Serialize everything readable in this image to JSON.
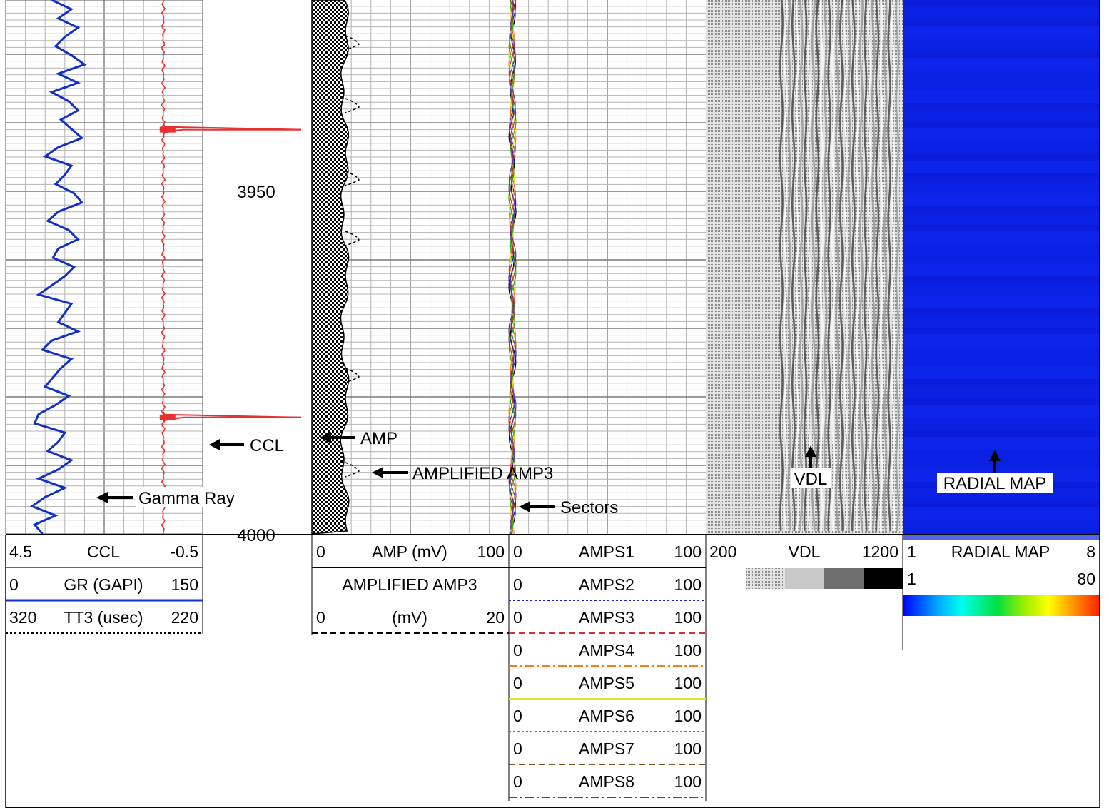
{
  "depth": {
    "labels": [
      "3950",
      "4000"
    ]
  },
  "callouts": {
    "ccl": "CCL",
    "gamma_ray": "Gamma Ray",
    "amp": "AMP",
    "amplified_amp3": "AMPLIFIED AMP3",
    "sectors": "Sectors",
    "vdl": "VDL",
    "radial_map": "RADIAL MAP"
  },
  "track1_header": [
    {
      "left": "4.5",
      "name": "CCL",
      "right": "-0.5",
      "line_color": "#e83030",
      "line_style": "solid"
    },
    {
      "left": "0",
      "name": "GR (GAPI)",
      "right": "150",
      "line_color": "#1030c8",
      "line_style": "solid"
    },
    {
      "left": "320",
      "name": "TT3 (usec)",
      "right": "220",
      "line_color": "#000000",
      "line_style": "dotted"
    }
  ],
  "track3_header": [
    {
      "left": "0",
      "name": "AMP (mV)",
      "right": "100",
      "line_color": "#000000",
      "line_style": "solid"
    },
    {
      "left": "",
      "name": "AMPLIFIED AMP3",
      "right": "",
      "line_color": "",
      "line_style": "none"
    },
    {
      "left": "0",
      "name": "(mV)",
      "right": "20",
      "line_color": "#000000",
      "line_style": "dashed"
    }
  ],
  "track4_header": [
    {
      "left": "0",
      "name": "AMPS1",
      "right": "100",
      "line_color": "#000000",
      "line_style": "solid"
    },
    {
      "left": "0",
      "name": "AMPS2",
      "right": "100",
      "line_color": "#2020c0",
      "line_style": "dotted"
    },
    {
      "left": "0",
      "name": "AMPS3",
      "right": "100",
      "line_color": "#d03030",
      "line_style": "dashed"
    },
    {
      "left": "0",
      "name": "AMPS4",
      "right": "100",
      "line_color": "#f08020",
      "line_style": "dashdot"
    },
    {
      "left": "0",
      "name": "AMPS5",
      "right": "100",
      "line_color": "#e8e020",
      "line_style": "solid"
    },
    {
      "left": "0",
      "name": "AMPS6",
      "right": "100",
      "line_color": "#20b020",
      "line_style": "dotted"
    },
    {
      "left": "0",
      "name": "AMPS7",
      "right": "100",
      "line_color": "#805020",
      "line_style": "dashed"
    },
    {
      "left": "0",
      "name": "AMPS8",
      "right": "100",
      "line_color": "#6030a0",
      "line_style": "dashdot"
    }
  ],
  "vdl_header": {
    "left": "200",
    "name": "VDL",
    "right": "1200"
  },
  "radial_header": {
    "left": "1",
    "name": "RADIAL MAP",
    "right": "8",
    "scale_left": "1",
    "scale_right": "80"
  },
  "colors": {
    "ccl": "#e83030",
    "gamma_ray": "#1030c8",
    "radial_fill": "#0b1fe0",
    "grid_minor": "#b4b4b4",
    "grid_major": "#7a7a7a"
  },
  "chart_data": {
    "type": "line",
    "depth_axis": {
      "units": "depth",
      "labels": [
        3950,
        4000
      ]
    },
    "series": [
      {
        "name": "CCL",
        "scale": [
          4.5,
          -0.5
        ],
        "baseline": 0.5,
        "spikes": [
          {
            "depth": 3941,
            "value": -3
          },
          {
            "depth": 3983,
            "value": -3
          }
        ]
      },
      {
        "name": "GR (GAPI)",
        "scale": [
          0,
          150
        ],
        "values": [
          35,
          50,
          40,
          55,
          45,
          38,
          50,
          60,
          40,
          55,
          35,
          48,
          55,
          42,
          50,
          58,
          40,
          30,
          50,
          45,
          38,
          52,
          58,
          40,
          32,
          48,
          55,
          40,
          36,
          52,
          45,
          35,
          25,
          50,
          45,
          40,
          55,
          35,
          28,
          50,
          42,
          36,
          30,
          48,
          38,
          25,
          22,
          45,
          40,
          32,
          50,
          40,
          25,
          45,
          30,
          20,
          38,
          22,
          28
        ]
      },
      {
        "name": "AMP (mV)",
        "scale": [
          0,
          100
        ],
        "values_range": [
          0,
          17
        ]
      },
      {
        "name": "AMPLIFIED AMP3 (mV)",
        "scale": [
          0,
          20
        ]
      },
      {
        "name": "AMPS1-AMPS8",
        "scale": [
          0,
          100
        ],
        "values_range": [
          0,
          2
        ]
      },
      {
        "name": "VDL",
        "scale": [
          200,
          1200
        ]
      },
      {
        "name": "RADIAL MAP",
        "scale": [
          1,
          8
        ],
        "color_scale": [
          1,
          80
        ]
      }
    ]
  }
}
